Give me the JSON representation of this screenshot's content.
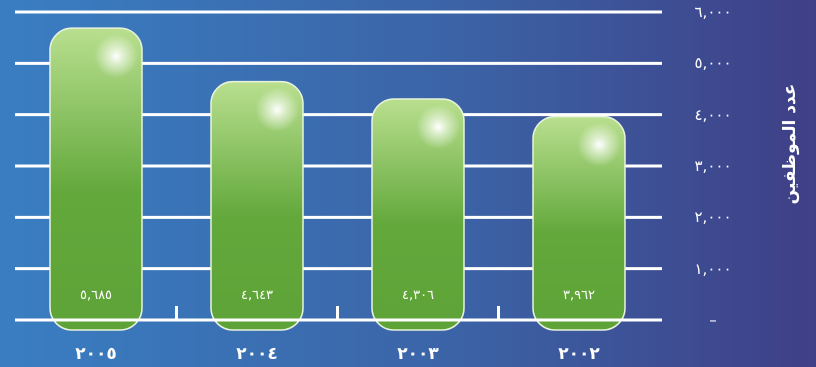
{
  "chart_data": {
    "type": "bar",
    "title": "",
    "xlabel": "",
    "ylabel": "عدد الموظفين",
    "categories": [
      "٢٠٠٥",
      "٢٠٠٤",
      "٢٠٠٣",
      "٢٠٠٢"
    ],
    "values": [
      5685,
      4643,
      4306,
      3962
    ],
    "value_labels": [
      "٥,٦٨٥",
      "٤,٦٤٣",
      "٤,٣٠٦",
      "٣,٩٦٢"
    ],
    "yticks": [
      0,
      1000,
      2000,
      3000,
      4000,
      5000,
      6000
    ],
    "ytick_labels": [
      "–",
      "١,٠٠٠",
      "٢,٠٠٠",
      "٣,٠٠٠",
      "٤,٠٠٠",
      "٥,٠٠٠",
      "٦,٠٠٠"
    ],
    "ylim": [
      0,
      6000
    ],
    "grid": true,
    "y_axis_position": "right",
    "colors": {
      "bar": "#6aad42",
      "bar_highlight": "#bde39a",
      "grid": "#ffffff",
      "background": "#3b64a7"
    }
  }
}
